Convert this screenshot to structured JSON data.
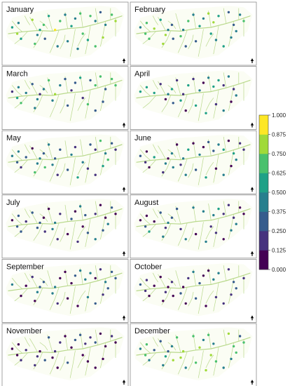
{
  "panels": [
    {
      "month": "January"
    },
    {
      "month": "February"
    },
    {
      "month": "March"
    },
    {
      "month": "April"
    },
    {
      "month": "May"
    },
    {
      "month": "June"
    },
    {
      "month": "July"
    },
    {
      "month": "August"
    },
    {
      "month": "September"
    },
    {
      "month": "October"
    },
    {
      "month": "November"
    },
    {
      "month": "December"
    }
  ],
  "colorbar": {
    "min": 0,
    "max": 1,
    "ticks": [
      "1.000",
      "0.875",
      "0.750",
      "0.625",
      "0.500",
      "0.375",
      "0.250",
      "0.125",
      "0.000"
    ],
    "colors": [
      "#440154",
      "#46327e",
      "#365c8d",
      "#277f8e",
      "#1fa187",
      "#4ac16d",
      "#a0da39",
      "#fde725"
    ]
  },
  "north_arrow_icon": "north-arrow-icon",
  "river_color": "#b9d98c"
}
